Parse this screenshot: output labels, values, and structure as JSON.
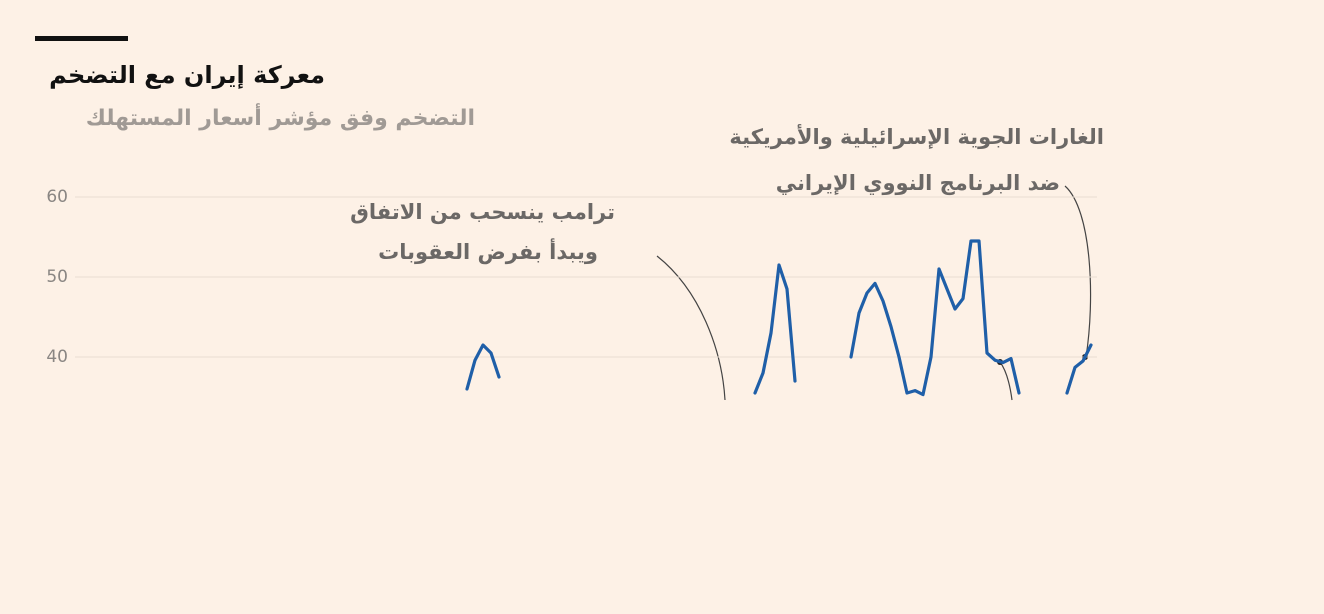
{
  "chart_data": {
    "type": "line",
    "title": "معركة إيران مع التضخم",
    "subtitle": "التضخم وفق مؤشر أسعار المستهلك",
    "annotations": [
      {
        "lines": [
          "ترامب ينسحب من الاتفاق",
          "ويبدأ بفرض العقوبات"
        ]
      },
      {
        "lines": [
          "الغارات الجوية الإسرائيلية والأمريكية",
          "ضد البرنامج النووي الإيراني"
        ]
      }
    ],
    "ylim": [
      35,
      62
    ],
    "yticks": [
      40,
      50,
      60
    ],
    "grid": true,
    "color": "#1f5fa8",
    "values": [
      null,
      null,
      null,
      null,
      null,
      null,
      null,
      null,
      null,
      null,
      null,
      null,
      null,
      null,
      null,
      null,
      null,
      null,
      null,
      null,
      null,
      null,
      null,
      null,
      null,
      null,
      null,
      null,
      null,
      null,
      null,
      null,
      null,
      null,
      null,
      null,
      null,
      null,
      null,
      null,
      null,
      null,
      null,
      null,
      null,
      null,
      null,
      null,
      null,
      36,
      39.6,
      41.5,
      40.5,
      37.5,
      null,
      null,
      null,
      null,
      null,
      null,
      null,
      null,
      null,
      null,
      null,
      null,
      null,
      null,
      null,
      null,
      null,
      null,
      null,
      null,
      null,
      null,
      null,
      null,
      null,
      null,
      null,
      null,
      null,
      null,
      null,
      35.5,
      38,
      43,
      51.5,
      48.5,
      37,
      null,
      null,
      null,
      null,
      null,
      null,
      40,
      45.5,
      48,
      49.2,
      47,
      43.8,
      40,
      35.5,
      35.8,
      35.3,
      40,
      51,
      48.5,
      46,
      47.3,
      54.5,
      54.5,
      40.5,
      39.6,
      39.3,
      39.8,
      35.5,
      null,
      null,
      null,
      null,
      null,
      35.5,
      38.7,
      39.5,
      41.5
    ]
  }
}
